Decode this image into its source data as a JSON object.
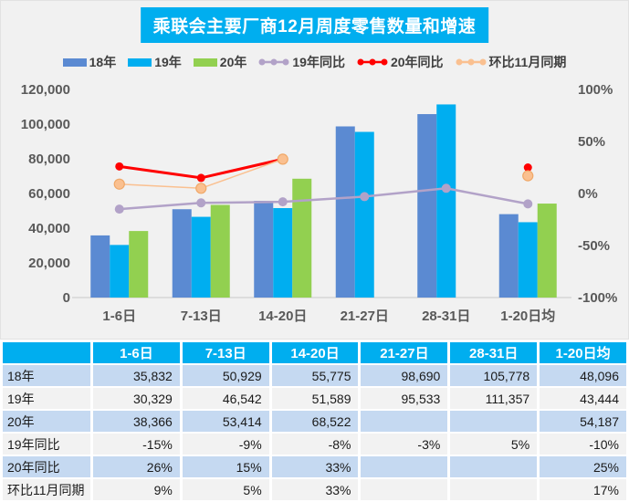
{
  "colors": {
    "accent": "#00AEEF",
    "chart_bg": "#F1F1F1",
    "bar18": "#5B8AD2",
    "bar19": "#00AEF0",
    "bar20": "#92D050",
    "line19": "#B2A2C8",
    "line20": "#FF0000",
    "lineMom": "#FAC090",
    "lineMomEdge": "#F0A868",
    "axis_text": "#595959",
    "row_blue": "#C5D9F1",
    "row_gray": "#F2F2F2",
    "baseline": "#C9C9C9"
  },
  "chart": {
    "title": "乘联会主要厂商12月周度零售数量和增速",
    "legend": [
      {
        "label": "18年",
        "type": "bar",
        "color_key": "bar18"
      },
      {
        "label": "19年",
        "type": "bar",
        "color_key": "bar19"
      },
      {
        "label": "20年",
        "type": "bar",
        "color_key": "bar20"
      },
      {
        "label": "19年同比",
        "type": "line",
        "color_key": "line19"
      },
      {
        "label": "20年同比",
        "type": "line",
        "color_key": "line20"
      },
      {
        "label": "环比11月同期",
        "type": "line",
        "color_key": "lineMom"
      }
    ]
  },
  "chart_data": {
    "type": "bar+line combo",
    "title": "乘联会主要厂商12月周度零售数量和增速",
    "categories": [
      "1-6日",
      "7-13日",
      "14-20日",
      "21-27日",
      "28-31日",
      "1-20日均"
    ],
    "bar_series": [
      {
        "name": "18年",
        "color_key": "bar18",
        "values": [
          35832,
          50929,
          55775,
          98690,
          105778,
          48096
        ]
      },
      {
        "name": "19年",
        "color_key": "bar19",
        "values": [
          30329,
          46542,
          51589,
          95533,
          111357,
          43444
        ]
      },
      {
        "name": "20年",
        "color_key": "bar20",
        "values": [
          38366,
          53414,
          68522,
          null,
          null,
          54187
        ]
      }
    ],
    "line_series": [
      {
        "name": "19年同比",
        "color_key": "line19",
        "axis": "right",
        "values": [
          -15,
          -9,
          -8,
          -3,
          5,
          -10
        ]
      },
      {
        "name": "20年同比",
        "color_key": "line20",
        "axis": "right",
        "values": [
          26,
          15,
          33,
          null,
          null,
          25
        ]
      },
      {
        "name": "环比11月同期",
        "color_key": "lineMom",
        "axis": "right",
        "values": [
          9,
          5,
          33,
          null,
          null,
          17
        ]
      }
    ],
    "left_axis": {
      "min": 0,
      "max": 120000,
      "ticks": [
        "120,000",
        "100,000",
        "80,000",
        "60,000",
        "40,000",
        "20,000",
        "0"
      ]
    },
    "right_axis": {
      "min": -100,
      "max": 100,
      "ticks": [
        "100%",
        "50%",
        "0%",
        "-50%",
        "-100%"
      ]
    },
    "legend_position": "top",
    "grid": false
  },
  "table": {
    "headers": [
      "",
      "1-6日",
      "7-13日",
      "14-20日",
      "21-27日",
      "28-31日",
      "1-20日均"
    ],
    "rows": [
      {
        "label": "18年",
        "cells": [
          "35,832",
          "50,929",
          "55,775",
          "98,690",
          "105,778",
          "48,096"
        ]
      },
      {
        "label": "19年",
        "cells": [
          "30,329",
          "46,542",
          "51,589",
          "95,533",
          "111,357",
          "43,444"
        ]
      },
      {
        "label": "20年",
        "cells": [
          "38,366",
          "53,414",
          "68,522",
          "",
          "",
          "54,187"
        ]
      },
      {
        "label": "19年同比",
        "cells": [
          "-15%",
          "-9%",
          "-8%",
          "-3%",
          "5%",
          "-10%"
        ]
      },
      {
        "label": "20年同比",
        "cells": [
          "26%",
          "15%",
          "33%",
          "",
          "",
          "25%"
        ]
      },
      {
        "label": "环比11月同期",
        "cells": [
          "9%",
          "5%",
          "33%",
          "",
          "",
          "17%"
        ]
      }
    ]
  }
}
